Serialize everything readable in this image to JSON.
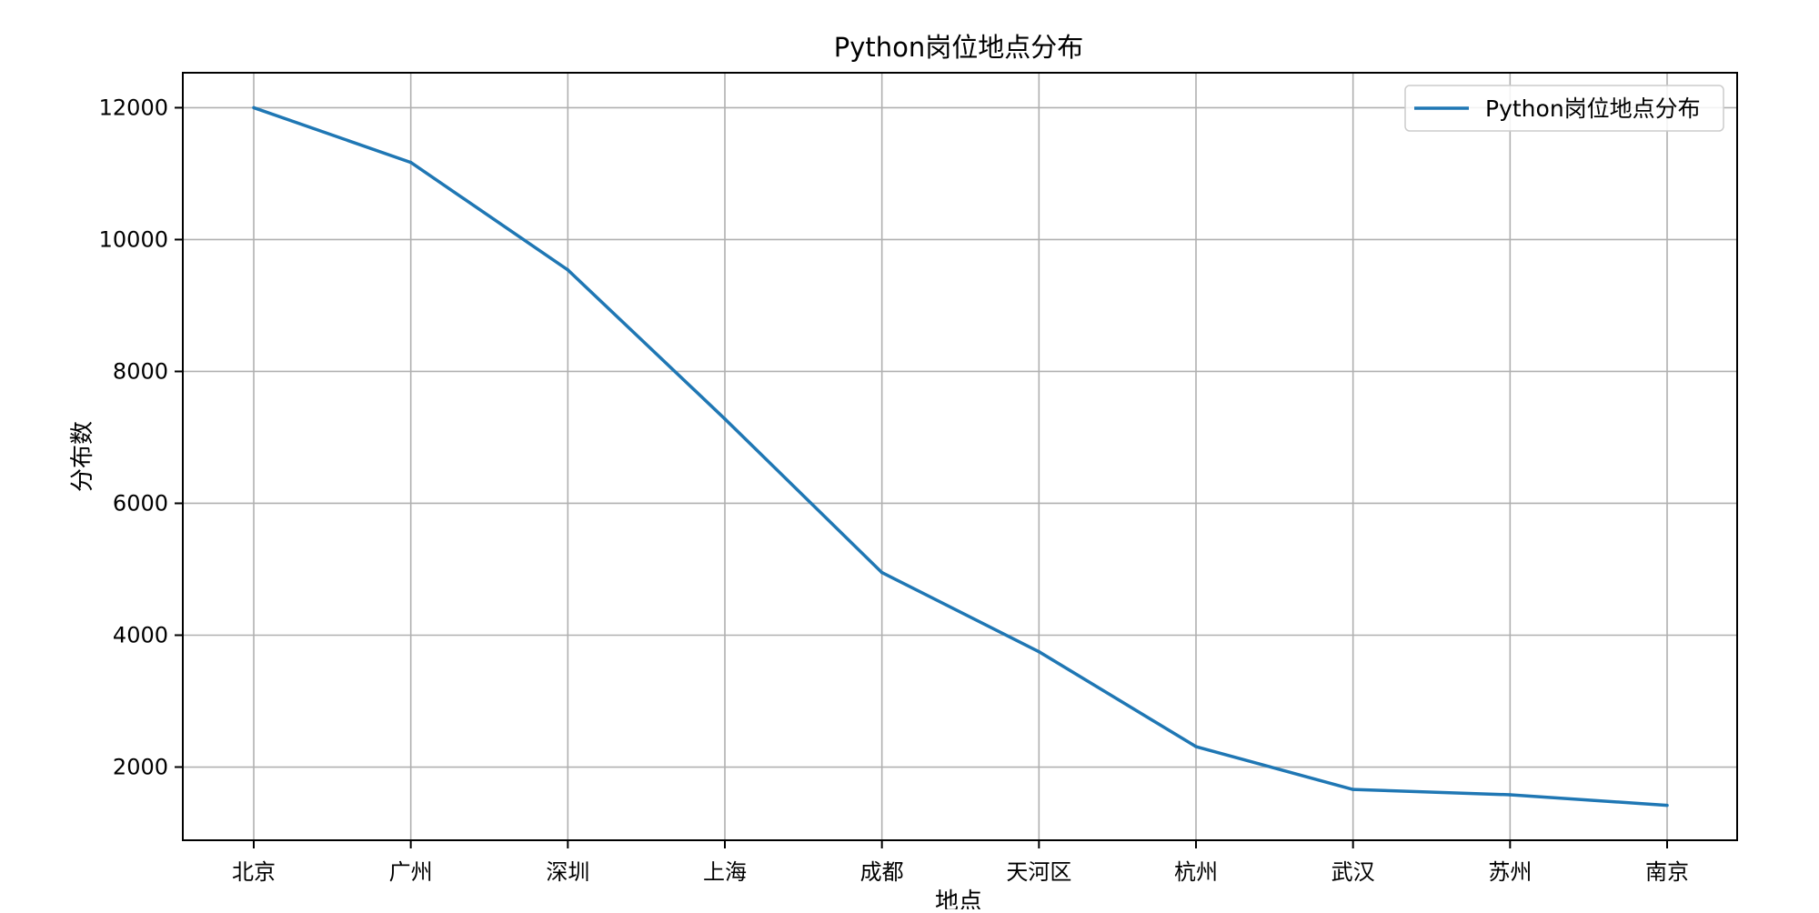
{
  "chart_data": {
    "type": "line",
    "title": "Python岗位地点分布",
    "xlabel": "地点",
    "ylabel": "分布数",
    "categories": [
      "北京",
      "广州",
      "深圳",
      "上海",
      "成都",
      "天河区",
      "杭州",
      "武汉",
      "苏州",
      "南京"
    ],
    "series": [
      {
        "name": "Python岗位地点分布",
        "values": [
          12000,
          11170,
          9540,
          7280,
          4950,
          3750,
          2310,
          1660,
          1580,
          1420
        ],
        "color": "#1f77b4"
      }
    ],
    "ylim": [
      890,
      12530
    ],
    "yticks": [
      2000,
      4000,
      6000,
      8000,
      10000,
      12000
    ],
    "grid": true,
    "legend_position": "upper-right"
  }
}
